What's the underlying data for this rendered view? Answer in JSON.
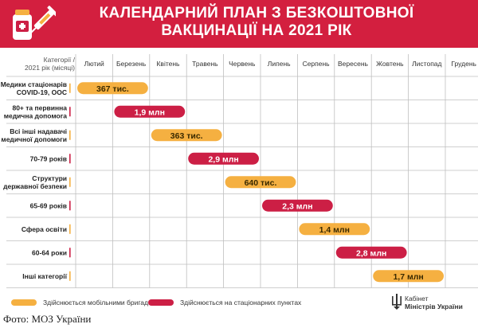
{
  "header": {
    "title_line1": "КАЛЕНДАРНИЙ ПЛАН З БЕЗКОШТОВНОЇ",
    "title_line2": "ВАКЦИНАЦІЇ НА 2021 РІК",
    "logo_icon": "vaccine-vial-syringe-icon",
    "colors": {
      "header_bg": "#d31f3f",
      "title_text": "#ffffff"
    }
  },
  "chart_data": {
    "type": "gantt",
    "corner_label_line1": "Категорії /",
    "corner_label_line2": "2021 рік (місяці)",
    "months": [
      "Лютий",
      "Березень",
      "Квітень",
      "Травень",
      "Червень",
      "Липень",
      "Серпень",
      "Вересень",
      "Жовтень",
      "Листопад",
      "Грудень"
    ],
    "categories": [
      {
        "lines": [
          "Медики стаціонарів",
          "COVID-19, ООС"
        ],
        "start": 0,
        "end": 2,
        "value": "367 тис.",
        "mode": "mobile"
      },
      {
        "lines": [
          "80+ та первинна",
          "медична допомога"
        ],
        "start": 1,
        "end": 3,
        "value": "1,9 млн",
        "mode": "stationary"
      },
      {
        "lines": [
          "Всі інші надавачі",
          "медичної допомоги"
        ],
        "start": 2,
        "end": 4,
        "value": "363 тис.",
        "mode": "mobile"
      },
      {
        "lines": [
          "70-79 років"
        ],
        "start": 3,
        "end": 5,
        "value": "2,9 млн",
        "mode": "stationary"
      },
      {
        "lines": [
          "Структури",
          "державної безпеки"
        ],
        "start": 4,
        "end": 6,
        "value": "640 тис.",
        "mode": "mobile"
      },
      {
        "lines": [
          "65-69 років"
        ],
        "start": 5,
        "end": 7,
        "value": "2,3 млн",
        "mode": "stationary"
      },
      {
        "lines": [
          "Сфера освіти"
        ],
        "start": 6,
        "end": 8,
        "value": "1,4 млн",
        "mode": "mobile"
      },
      {
        "lines": [
          "60-64 роки"
        ],
        "start": 7,
        "end": 9,
        "value": "2,8 млн",
        "mode": "stationary"
      },
      {
        "lines": [
          "Інші категорії"
        ],
        "start": 8,
        "end": 10,
        "value": "1,7 млн",
        "mode": "mobile"
      }
    ],
    "legend": {
      "mobile": "Здійснюється мобільними бригадами",
      "stationary": "Здійснюється на стаціонарних пунктах"
    },
    "colors": {
      "mobile": "#f5b041",
      "stationary": "#cc1f45",
      "grid": "#bfbfbf"
    },
    "legend_placement": "bottom-left"
  },
  "footer": {
    "org_line1": "Кабінет",
    "org_line2": "Міністрів України",
    "emblem_icon": "trident-emblem-icon"
  },
  "caption": "Фото: МОЗ України"
}
